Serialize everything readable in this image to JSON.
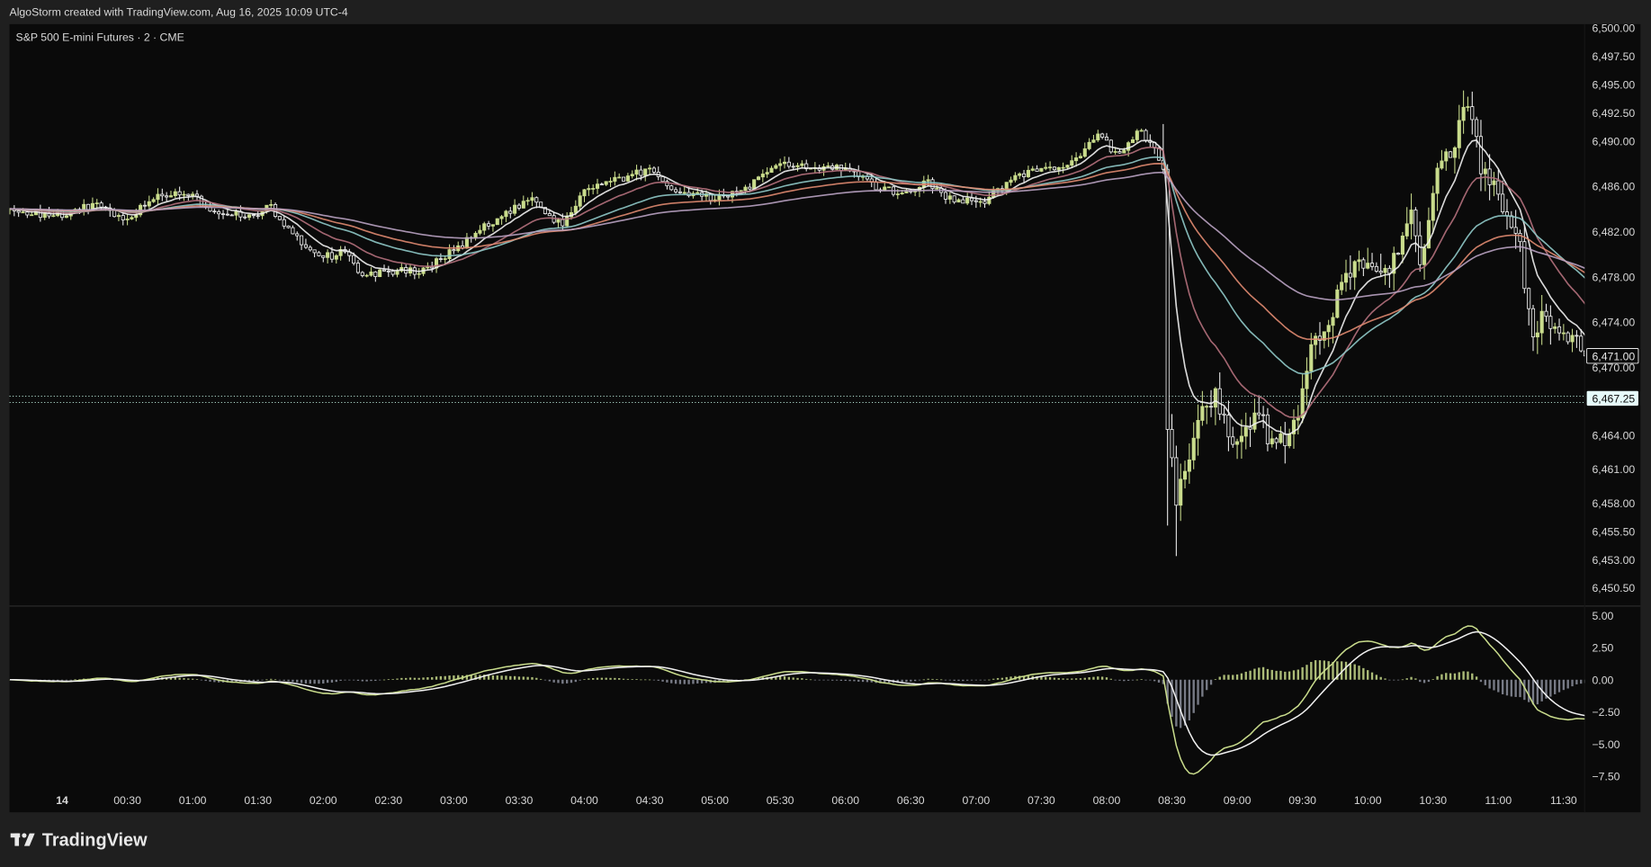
{
  "header": {
    "credit": "AlgoStorm created with TradingView.com, Aug 16, 2025 10:09 UTC-4"
  },
  "footer": {
    "logo_text": "TradingView"
  },
  "colors": {
    "background": "#1f1f1f",
    "pane": "#0a0a0a",
    "up_candle": "#c9dc8c",
    "down_candle": "#f2f2f2",
    "ema": [
      "#f0f0f0",
      "#b4707c",
      "#8fc9c8",
      "#e08a70",
      "#b9a2c2"
    ],
    "macd_line": "#c9dc8c",
    "signal_line": "#f0f0f0",
    "hist_pos": "#c9dc8c",
    "hist_neg": "#8c8f9c",
    "last_price_bg": "#e6fbfb"
  },
  "chart_data": [
    {
      "type": "candlestick",
      "title": "S&P 500 E-mini Futures · 2 · CME",
      "interval_minutes": 2,
      "x_tick_labels": [
        "14",
        "00:30",
        "01:00",
        "01:30",
        "02:00",
        "02:30",
        "03:00",
        "03:30",
        "04:00",
        "04:30",
        "05:00",
        "05:30",
        "06:00",
        "06:30",
        "07:00",
        "07:30",
        "08:00",
        "08:30",
        "09:00",
        "09:30",
        "10:00",
        "10:30",
        "11:00",
        "11:30"
      ],
      "y_tick_labels": [
        "6,500.00",
        "6,497.50",
        "6,495.00",
        "6,492.50",
        "6,490.00",
        "6,486.00",
        "6,482.00",
        "6,478.00",
        "6,474.00",
        "6,470.00",
        "6,464.00",
        "6,461.00",
        "6,458.00",
        "6,455.50",
        "6,453.00",
        "6,450.50"
      ],
      "y_ticks": [
        6500,
        6497.5,
        6495,
        6492.5,
        6490,
        6486,
        6482,
        6478,
        6474,
        6470,
        6464,
        6461,
        6458,
        6455.5,
        6453,
        6450.5
      ],
      "ylim": [
        6449.0,
        6501.5
      ],
      "price_labels": [
        {
          "text": "6,471.00",
          "value": 6471.0,
          "style": "outlined"
        },
        {
          "text": "6,467.25",
          "value": 6467.25,
          "style": "filled"
        }
      ],
      "price_path": [
        {
          "t": "23:36",
          "c": 6484.0
        },
        {
          "t": "23:56",
          "c": 6483.4
        },
        {
          "t": "00:15",
          "c": 6484.3
        },
        {
          "t": "00:30",
          "c": 6483.1
        },
        {
          "t": "00:45",
          "c": 6485.3
        },
        {
          "t": "01:00",
          "c": 6485.3
        },
        {
          "t": "01:07",
          "c": 6483.9
        },
        {
          "t": "01:30",
          "c": 6483.4
        },
        {
          "t": "01:35",
          "c": 6484.3
        },
        {
          "t": "01:52",
          "c": 6480.6
        },
        {
          "t": "02:00",
          "c": 6479.7
        },
        {
          "t": "02:10",
          "c": 6480.2
        },
        {
          "t": "02:18",
          "c": 6478.1
        },
        {
          "t": "02:30",
          "c": 6478.5
        },
        {
          "t": "02:45",
          "c": 6478.5
        },
        {
          "t": "03:00",
          "c": 6480.3
        },
        {
          "t": "03:15",
          "c": 6482.5
        },
        {
          "t": "03:35",
          "c": 6484.8
        },
        {
          "t": "03:50",
          "c": 6482.5
        },
        {
          "t": "04:00",
          "c": 6485.7
        },
        {
          "t": "04:17",
          "c": 6486.6
        },
        {
          "t": "04:30",
          "c": 6487.6
        },
        {
          "t": "04:40",
          "c": 6485.7
        },
        {
          "t": "05:00",
          "c": 6484.8
        },
        {
          "t": "05:15",
          "c": 6485.9
        },
        {
          "t": "05:30",
          "c": 6488.0
        },
        {
          "t": "05:45",
          "c": 6487.6
        },
        {
          "t": "06:00",
          "c": 6487.6
        },
        {
          "t": "06:15",
          "c": 6485.7
        },
        {
          "t": "06:30",
          "c": 6485.5
        },
        {
          "t": "06:37",
          "c": 6486.5
        },
        {
          "t": "06:50",
          "c": 6484.6
        },
        {
          "t": "07:05",
          "c": 6484.8
        },
        {
          "t": "07:20",
          "c": 6487.1
        },
        {
          "t": "07:35",
          "c": 6487.6
        },
        {
          "t": "07:45",
          "c": 6488.0
        },
        {
          "t": "07:57",
          "c": 6490.8
        },
        {
          "t": "08:05",
          "c": 6488.5
        },
        {
          "t": "08:15",
          "c": 6490.8
        },
        {
          "t": "08:22",
          "c": 6489.4
        },
        {
          "t": "08:26",
          "c": 6487.5,
          "h": 6491.5
        },
        {
          "t": "08:28",
          "c": 6464.5,
          "l": 6456.0
        },
        {
          "t": "08:32",
          "c": 6457.8,
          "l": 6453.3
        },
        {
          "t": "08:37",
          "c": 6461.6
        },
        {
          "t": "08:42",
          "c": 6465.3
        },
        {
          "t": "08:50",
          "c": 6468.1
        },
        {
          "t": "08:57",
          "c": 6463.4
        },
        {
          "t": "09:02",
          "c": 6463.9
        },
        {
          "t": "09:10",
          "c": 6465.8
        },
        {
          "t": "09:17",
          "c": 6463.0
        },
        {
          "t": "09:25",
          "c": 6463.4
        },
        {
          "t": "09:30",
          "c": 6468.1
        },
        {
          "t": "09:35",
          "c": 6472.7
        },
        {
          "t": "09:42",
          "c": 6473.7
        },
        {
          "t": "09:50",
          "c": 6478.3
        },
        {
          "t": "10:00",
          "c": 6479.2
        },
        {
          "t": "10:10",
          "c": 6478.3
        },
        {
          "t": "10:20",
          "c": 6483.9
        },
        {
          "t": "10:25",
          "c": 6478.3
        },
        {
          "t": "10:32",
          "c": 6487.6
        },
        {
          "t": "10:40",
          "c": 6489.4
        },
        {
          "t": "10:45",
          "c": 6494.1
        },
        {
          "t": "10:50",
          "c": 6490.4
        },
        {
          "t": "10:52",
          "c": 6487.1
        },
        {
          "t": "11:00",
          "c": 6485.3
        },
        {
          "t": "11:05",
          "c": 6482.5
        },
        {
          "t": "11:10",
          "c": 6481.1
        },
        {
          "t": "11:15",
          "c": 6472.7
        },
        {
          "t": "11:22",
          "c": 6474.5
        },
        {
          "t": "11:40",
          "c": 6471.0
        }
      ],
      "overlays": "5 moving averages",
      "grid": false
    },
    {
      "type": "macd",
      "y_tick_labels": [
        "5.00",
        "2.50",
        "0.00",
        "−2.50",
        "−5.00",
        "−7.50"
      ],
      "y_ticks": [
        5,
        2.5,
        0,
        -2.5,
        -5,
        -7.5
      ],
      "ylim": [
        -8.0,
        5.5
      ]
    }
  ]
}
